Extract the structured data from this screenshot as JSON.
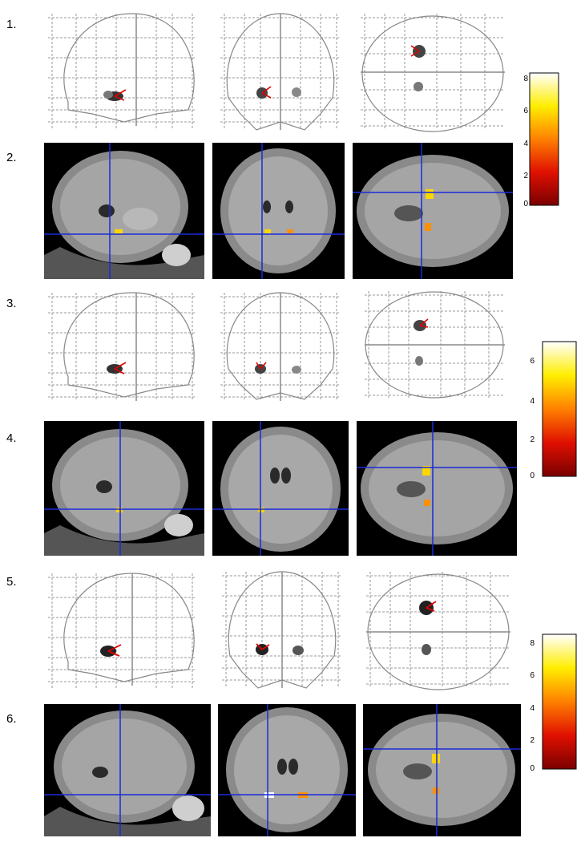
{
  "rows": [
    {
      "label": "1.",
      "kind": "glass"
    },
    {
      "label": "2.",
      "kind": "mri"
    },
    {
      "label": "3.",
      "kind": "glass"
    },
    {
      "label": "4.",
      "kind": "mri"
    },
    {
      "label": "5.",
      "kind": "glass"
    },
    {
      "label": "6.",
      "kind": "mri"
    }
  ],
  "colorbars": [
    {
      "ticks": [
        "8",
        "6",
        "4",
        "2",
        "0"
      ]
    },
    {
      "ticks": [
        "6",
        "4",
        "2",
        "0"
      ]
    },
    {
      "ticks": [
        "8",
        "6",
        "4",
        "2",
        "0"
      ]
    }
  ],
  "colors": {
    "crosshair_mri": "#1a2bd8",
    "crosshair_glass": "#8a8a8a",
    "blob_hot": "#ffd700",
    "arrow_red": "#e00000"
  }
}
